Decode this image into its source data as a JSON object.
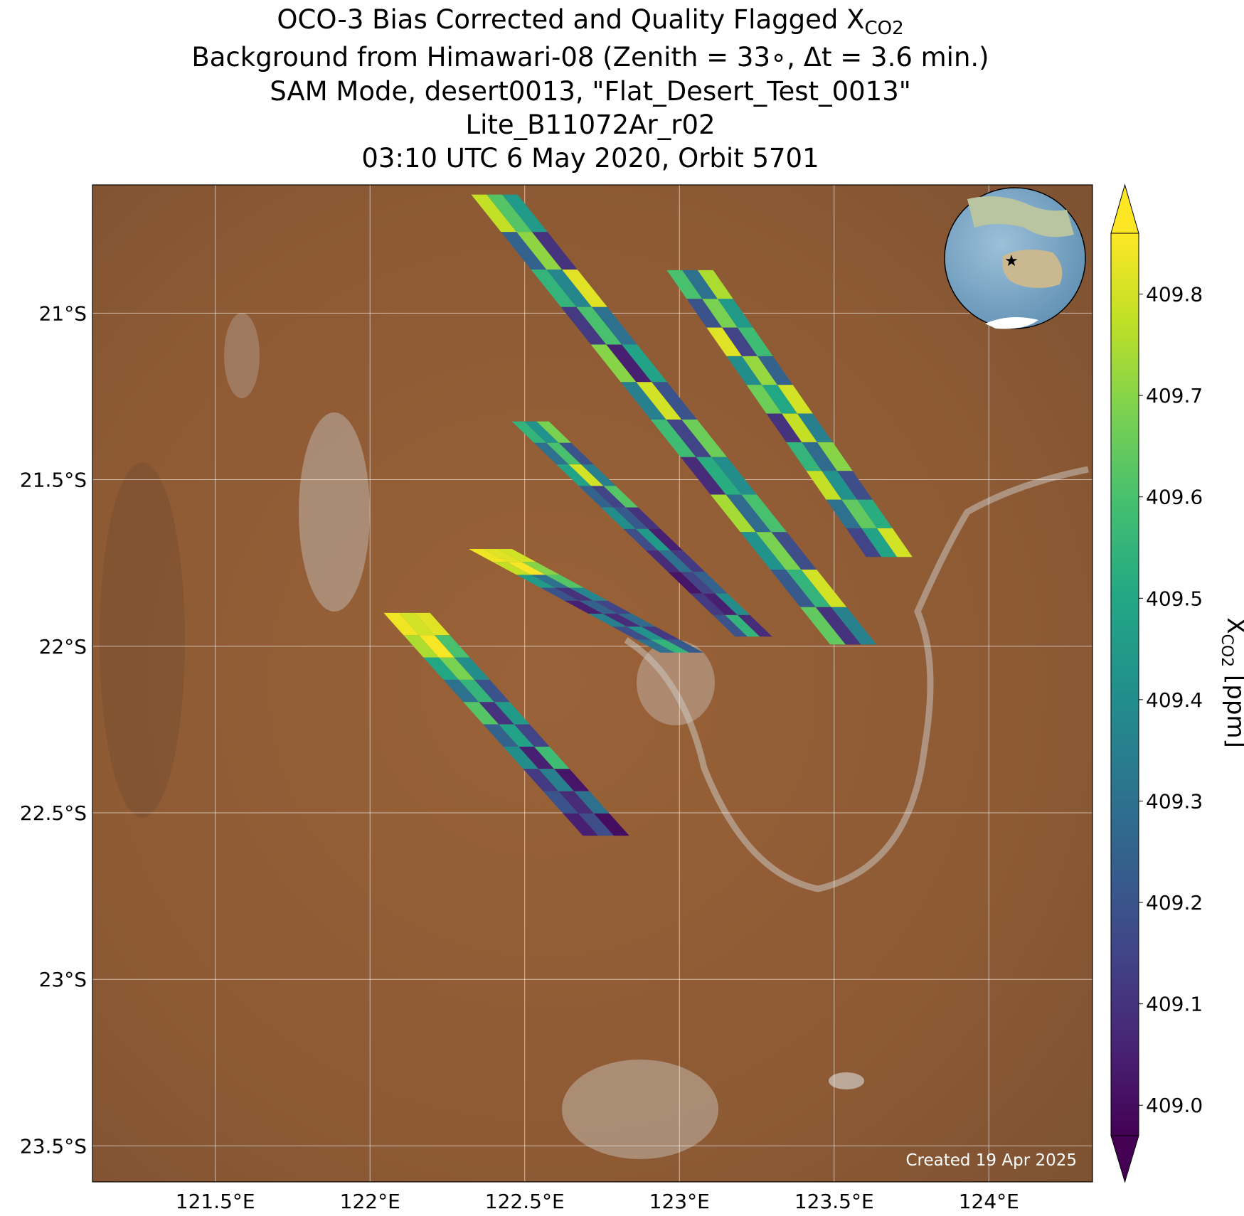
{
  "title_main": "OCO-3 Bias Corrected and Quality Flagged X",
  "title_sub": "CO2",
  "subtitle_lines": [
    "Background from Himawari-08 (Zenith = 33∘, Δt =  3.6 min.)",
    "SAM Mode, desert0013, \"Flat_Desert_Test_0013\"",
    "Lite_B11072Ar_r02",
    "03:10 UTC 6 May 2020, Orbit 5701"
  ],
  "map": {
    "xlim": [
      121.103,
      124.335
    ],
    "ylim": [
      -23.608,
      -20.615
    ],
    "xticks": [
      {
        "value": 121.5,
        "label": "121.5°E"
      },
      {
        "value": 122,
        "label": "122°E"
      },
      {
        "value": 122.5,
        "label": "122.5°E"
      },
      {
        "value": 123,
        "label": "123°E"
      },
      {
        "value": 123.5,
        "label": "123.5°E"
      },
      {
        "value": 124,
        "label": "124°E"
      }
    ],
    "yticks": [
      {
        "value": -21,
        "label": "21°S"
      },
      {
        "value": -21.5,
        "label": "21.5°S"
      },
      {
        "value": -22,
        "label": "22°S"
      },
      {
        "value": -22.5,
        "label": "22.5°S"
      },
      {
        "value": -23,
        "label": "23°S"
      },
      {
        "value": -23.5,
        "label": "23.5°S"
      }
    ],
    "grid": true,
    "swaths": [
      {
        "start": [
          122.402,
          -20.644
        ],
        "end": [
          123.562,
          -21.995
        ],
        "width": 0.15,
        "rows": [
          [
            409.78,
            409.62,
            409.45
          ],
          [
            409.25,
            409.71,
            409.1
          ],
          [
            409.55,
            409.38,
            409.82
          ],
          [
            409.12,
            409.6,
            409.3
          ],
          [
            409.7,
            409.05,
            409.48
          ],
          [
            409.35,
            409.8,
            409.2
          ],
          [
            409.58,
            409.15,
            409.66
          ],
          [
            409.08,
            409.52,
            409.4
          ],
          [
            409.74,
            409.28,
            409.6
          ],
          [
            409.42,
            409.68,
            409.18
          ],
          [
            409.22,
            409.55,
            409.8
          ],
          [
            409.64,
            409.1,
            409.36
          ]
        ]
      },
      {
        "start": [
          123.034,
          -20.871
        ],
        "end": [
          123.678,
          -21.732
        ],
        "width": 0.15,
        "rows": [
          [
            409.6,
            409.3,
            409.75
          ],
          [
            409.2,
            409.68,
            409.45
          ],
          [
            409.82,
            409.15,
            409.58
          ],
          [
            409.4,
            409.72,
            409.25
          ],
          [
            409.66,
            409.5,
            409.8
          ],
          [
            409.1,
            409.78,
            409.35
          ],
          [
            409.55,
            409.28,
            409.7
          ],
          [
            409.78,
            409.42,
            409.18
          ],
          [
            409.3,
            409.64,
            409.52
          ],
          [
            409.15,
            409.48,
            409.8
          ]
        ]
      },
      {
        "start": [
          122.518,
          -21.325
        ],
        "end": [
          123.24,
          -21.971
        ],
        "width": 0.12,
        "rows": [
          [
            409.55,
            409.42,
            409.68
          ],
          [
            409.3,
            409.6,
            409.2
          ],
          [
            409.48,
            409.8,
            409.35
          ],
          [
            409.25,
            409.15,
            409.62
          ],
          [
            409.4,
            409.22,
            409.1
          ],
          [
            409.18,
            409.45,
            409.05
          ],
          [
            409.08,
            409.3,
            409.12
          ],
          [
            409.02,
            409.15,
            409.25
          ],
          [
            409.12,
            409.05,
            409.4
          ],
          [
            409.2,
            409.55,
            409.08
          ]
        ]
      },
      {
        "start": [
          122.389,
          -21.708
        ],
        "end": [
          123.008,
          -22.019
        ],
        "width": 0.14,
        "rows": [
          [
            409.84,
            409.82,
            409.8
          ],
          [
            409.78,
            409.85,
            409.7
          ],
          [
            409.45,
            409.3,
            409.62
          ],
          [
            409.2,
            409.1,
            409.38
          ],
          [
            409.05,
            409.25,
            409.15
          ],
          [
            409.35,
            409.08,
            409.28
          ],
          [
            409.18,
            409.42,
            409.12
          ],
          [
            409.3,
            409.55,
            409.22
          ]
        ]
      },
      {
        "start": [
          122.119,
          -21.9
        ],
        "end": [
          122.763,
          -22.569
        ],
        "width": 0.15,
        "rows": [
          [
            409.84,
            409.8,
            409.82
          ],
          [
            409.75,
            409.85,
            409.6
          ],
          [
            409.5,
            409.68,
            409.4
          ],
          [
            409.3,
            409.55,
            409.2
          ],
          [
            409.62,
            409.1,
            409.45
          ],
          [
            409.25,
            409.48,
            409.15
          ],
          [
            409.4,
            409.05,
            409.58
          ],
          [
            409.12,
            409.35,
            409.02
          ],
          [
            409.2,
            409.08,
            409.3
          ],
          [
            409.05,
            409.18,
            409.0
          ]
        ]
      }
    ]
  },
  "colorbar": {
    "label_main": "X",
    "label_sub": "CO2",
    "label_unit": " [ppm]",
    "clim": [
      408.97,
      409.86
    ],
    "ticks": [
      {
        "value": 409.0,
        "label": "409.0"
      },
      {
        "value": 409.1,
        "label": "409.1"
      },
      {
        "value": 409.2,
        "label": "409.2"
      },
      {
        "value": 409.3,
        "label": "409.3"
      },
      {
        "value": 409.4,
        "label": "409.4"
      },
      {
        "value": 409.5,
        "label": "409.5"
      },
      {
        "value": 409.6,
        "label": "409.6"
      },
      {
        "value": 409.7,
        "label": "409.7"
      },
      {
        "value": 409.8,
        "label": "409.8"
      }
    ]
  },
  "footer": "Created 19 Apr 2025"
}
